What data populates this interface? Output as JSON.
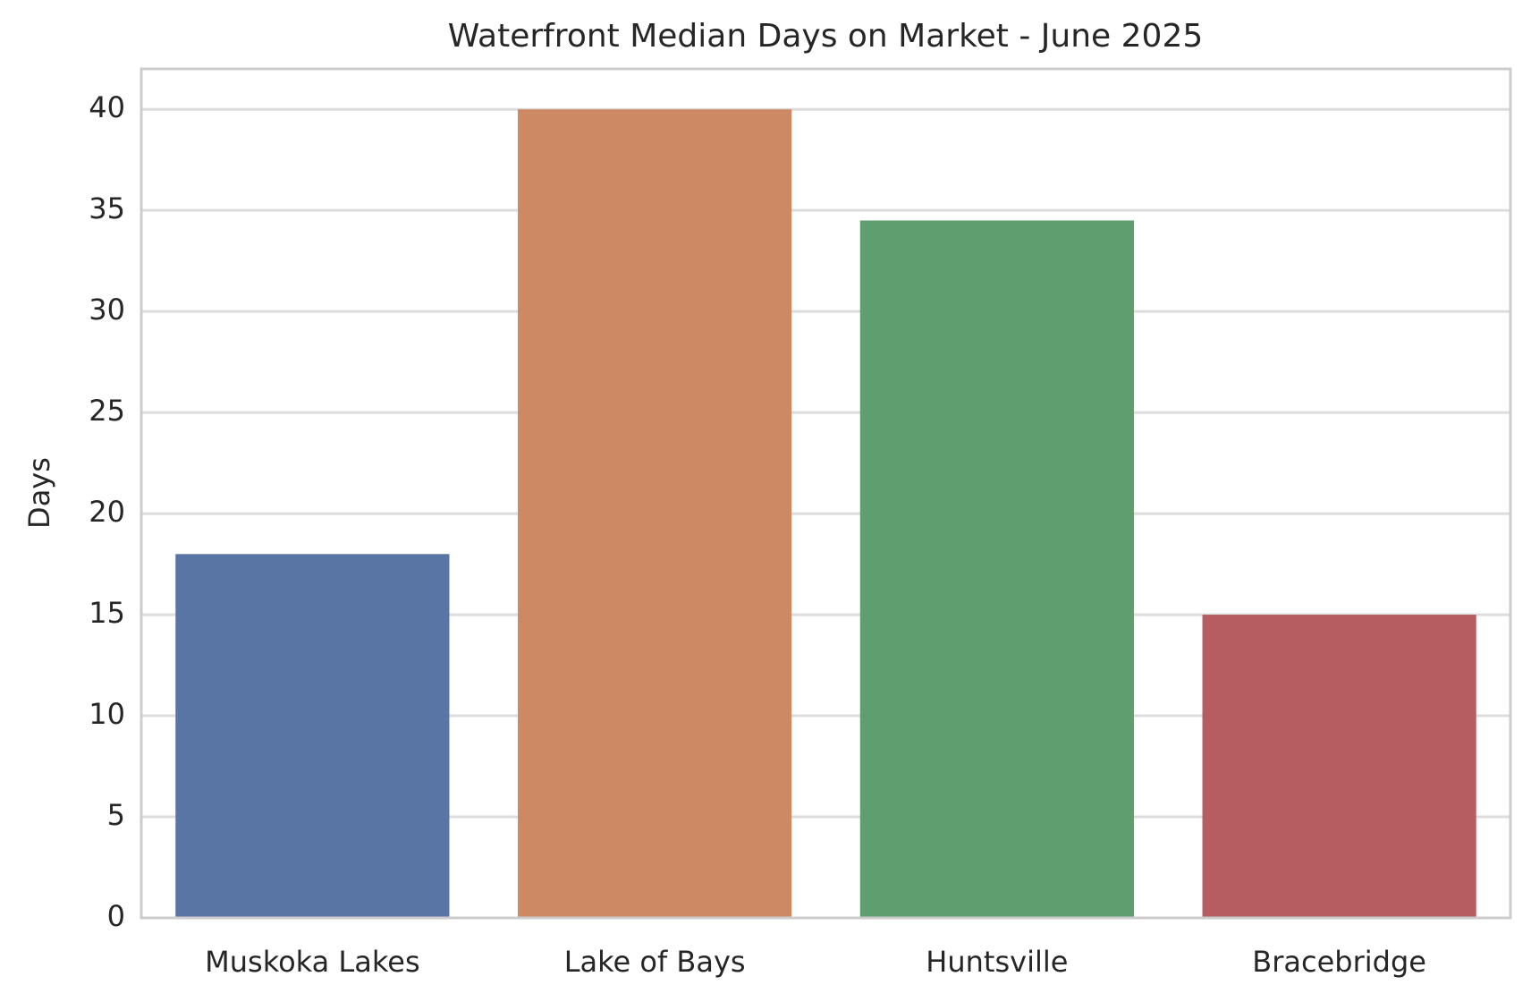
{
  "chart_data": {
    "type": "bar",
    "title": "Waterfront Median Days on Market - June 2025",
    "y_label": "Days",
    "categories": [
      "Muskoka Lakes",
      "Lake of Bays",
      "Huntsville",
      "Bracebridge"
    ],
    "values": [
      18,
      40,
      34.5,
      15
    ],
    "colors": [
      "#5975a4",
      "#cc8963",
      "#5f9e6e",
      "#b55d60"
    ],
    "ylim": [
      0,
      42
    ],
    "yticks": [
      0,
      5,
      10,
      15,
      20,
      25,
      30,
      35,
      40
    ],
    "grid": true
  }
}
